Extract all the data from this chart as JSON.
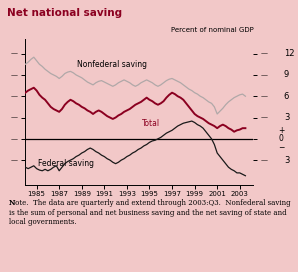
{
  "title": "Net national saving",
  "ylabel_right": "Percent of nominal GDP",
  "background_color": "#f2c8c8",
  "plot_bg_color": "#f2c8c8",
  "fig_bg_color": "#f2c8c8",
  "title_area_color": "#ffffff",
  "xlim": [
    1984.0,
    2004.2
  ],
  "ylim": [
    -6.5,
    14.0
  ],
  "yticks": [
    -3,
    0,
    3,
    6,
    9,
    12
  ],
  "xticks": [
    1985,
    1987,
    1989,
    1991,
    1993,
    1995,
    1997,
    1999,
    2001,
    2003
  ],
  "nonfederal_color": "#b0a8a8",
  "total_color": "#8b0020",
  "federal_color": "#1a1a1a",
  "note_text_normal": "The data are quarterly and extend through 2003:Q3.  Nonfederal saving is the sum of personal and net business saving and the net saving of state and local governments.",
  "nonfederal_label": "Nonfederal saving",
  "total_label": "Total",
  "federal_label": "Federal saving",
  "nonfederal_data": [
    [
      1984.0,
      10.5
    ],
    [
      1984.25,
      10.8
    ],
    [
      1984.5,
      11.2
    ],
    [
      1984.75,
      11.5
    ],
    [
      1985.0,
      11.0
    ],
    [
      1985.25,
      10.5
    ],
    [
      1985.5,
      10.2
    ],
    [
      1985.75,
      9.8
    ],
    [
      1986.0,
      9.5
    ],
    [
      1986.25,
      9.2
    ],
    [
      1986.5,
      9.0
    ],
    [
      1986.75,
      8.8
    ],
    [
      1987.0,
      8.5
    ],
    [
      1987.25,
      8.8
    ],
    [
      1987.5,
      9.2
    ],
    [
      1987.75,
      9.4
    ],
    [
      1988.0,
      9.5
    ],
    [
      1988.25,
      9.3
    ],
    [
      1988.5,
      9.0
    ],
    [
      1988.75,
      8.8
    ],
    [
      1989.0,
      8.6
    ],
    [
      1989.25,
      8.3
    ],
    [
      1989.5,
      8.0
    ],
    [
      1989.75,
      7.8
    ],
    [
      1990.0,
      7.6
    ],
    [
      1990.25,
      7.9
    ],
    [
      1990.5,
      8.1
    ],
    [
      1990.75,
      8.2
    ],
    [
      1991.0,
      8.0
    ],
    [
      1991.25,
      7.8
    ],
    [
      1991.5,
      7.6
    ],
    [
      1991.75,
      7.4
    ],
    [
      1992.0,
      7.6
    ],
    [
      1992.25,
      7.9
    ],
    [
      1992.5,
      8.1
    ],
    [
      1992.75,
      8.3
    ],
    [
      1993.0,
      8.1
    ],
    [
      1993.25,
      7.9
    ],
    [
      1993.5,
      7.6
    ],
    [
      1993.75,
      7.4
    ],
    [
      1994.0,
      7.6
    ],
    [
      1994.25,
      7.9
    ],
    [
      1994.5,
      8.1
    ],
    [
      1994.75,
      8.3
    ],
    [
      1995.0,
      8.1
    ],
    [
      1995.25,
      7.9
    ],
    [
      1995.5,
      7.6
    ],
    [
      1995.75,
      7.4
    ],
    [
      1996.0,
      7.6
    ],
    [
      1996.25,
      7.9
    ],
    [
      1996.5,
      8.2
    ],
    [
      1996.75,
      8.4
    ],
    [
      1997.0,
      8.5
    ],
    [
      1997.25,
      8.3
    ],
    [
      1997.5,
      8.1
    ],
    [
      1997.75,
      7.9
    ],
    [
      1998.0,
      7.6
    ],
    [
      1998.25,
      7.3
    ],
    [
      1998.5,
      7.0
    ],
    [
      1998.75,
      6.8
    ],
    [
      1999.0,
      6.5
    ],
    [
      1999.25,
      6.3
    ],
    [
      1999.5,
      6.0
    ],
    [
      1999.75,
      5.8
    ],
    [
      2000.0,
      5.5
    ],
    [
      2000.25,
      5.2
    ],
    [
      2000.5,
      5.0
    ],
    [
      2000.75,
      4.5
    ],
    [
      2001.0,
      3.5
    ],
    [
      2001.25,
      3.9
    ],
    [
      2001.5,
      4.3
    ],
    [
      2001.75,
      4.8
    ],
    [
      2002.0,
      5.2
    ],
    [
      2002.25,
      5.5
    ],
    [
      2002.5,
      5.8
    ],
    [
      2002.75,
      6.0
    ],
    [
      2003.0,
      6.2
    ],
    [
      2003.25,
      6.3
    ],
    [
      2003.5,
      6.0
    ]
  ],
  "total_data": [
    [
      1984.0,
      6.5
    ],
    [
      1984.25,
      6.8
    ],
    [
      1984.5,
      7.0
    ],
    [
      1984.75,
      7.2
    ],
    [
      1985.0,
      6.8
    ],
    [
      1985.25,
      6.2
    ],
    [
      1985.5,
      5.8
    ],
    [
      1985.75,
      5.5
    ],
    [
      1986.0,
      5.0
    ],
    [
      1986.25,
      4.5
    ],
    [
      1986.5,
      4.2
    ],
    [
      1986.75,
      4.0
    ],
    [
      1987.0,
      3.8
    ],
    [
      1987.25,
      4.2
    ],
    [
      1987.5,
      4.8
    ],
    [
      1987.75,
      5.2
    ],
    [
      1988.0,
      5.5
    ],
    [
      1988.25,
      5.3
    ],
    [
      1988.5,
      5.0
    ],
    [
      1988.75,
      4.8
    ],
    [
      1989.0,
      4.5
    ],
    [
      1989.25,
      4.3
    ],
    [
      1989.5,
      4.0
    ],
    [
      1989.75,
      3.8
    ],
    [
      1990.0,
      3.5
    ],
    [
      1990.25,
      3.8
    ],
    [
      1990.5,
      4.0
    ],
    [
      1990.75,
      3.8
    ],
    [
      1991.0,
      3.5
    ],
    [
      1991.25,
      3.2
    ],
    [
      1991.5,
      3.0
    ],
    [
      1991.75,
      2.8
    ],
    [
      1992.0,
      3.0
    ],
    [
      1992.25,
      3.3
    ],
    [
      1992.5,
      3.5
    ],
    [
      1992.75,
      3.8
    ],
    [
      1993.0,
      4.0
    ],
    [
      1993.25,
      4.2
    ],
    [
      1993.5,
      4.5
    ],
    [
      1993.75,
      4.8
    ],
    [
      1994.0,
      5.0
    ],
    [
      1994.25,
      5.2
    ],
    [
      1994.5,
      5.5
    ],
    [
      1994.75,
      5.8
    ],
    [
      1995.0,
      5.5
    ],
    [
      1995.25,
      5.3
    ],
    [
      1995.5,
      5.0
    ],
    [
      1995.75,
      4.8
    ],
    [
      1996.0,
      5.0
    ],
    [
      1996.25,
      5.3
    ],
    [
      1996.5,
      5.8
    ],
    [
      1996.75,
      6.2
    ],
    [
      1997.0,
      6.5
    ],
    [
      1997.25,
      6.3
    ],
    [
      1997.5,
      6.0
    ],
    [
      1997.75,
      5.8
    ],
    [
      1998.0,
      5.5
    ],
    [
      1998.25,
      5.0
    ],
    [
      1998.5,
      4.5
    ],
    [
      1998.75,
      4.0
    ],
    [
      1999.0,
      3.5
    ],
    [
      1999.25,
      3.2
    ],
    [
      1999.5,
      3.0
    ],
    [
      1999.75,
      2.8
    ],
    [
      2000.0,
      2.5
    ],
    [
      2000.25,
      2.2
    ],
    [
      2000.5,
      2.0
    ],
    [
      2000.75,
      1.8
    ],
    [
      2001.0,
      1.5
    ],
    [
      2001.25,
      1.8
    ],
    [
      2001.5,
      2.0
    ],
    [
      2001.75,
      1.8
    ],
    [
      2002.0,
      1.5
    ],
    [
      2002.25,
      1.3
    ],
    [
      2002.5,
      1.0
    ],
    [
      2002.75,
      1.2
    ],
    [
      2003.0,
      1.3
    ],
    [
      2003.25,
      1.5
    ],
    [
      2003.5,
      1.5
    ]
  ],
  "federal_data": [
    [
      1984.0,
      -4.0
    ],
    [
      1984.25,
      -4.2
    ],
    [
      1984.5,
      -4.0
    ],
    [
      1984.75,
      -3.8
    ],
    [
      1985.0,
      -4.2
    ],
    [
      1985.25,
      -4.4
    ],
    [
      1985.5,
      -4.5
    ],
    [
      1985.75,
      -4.3
    ],
    [
      1986.0,
      -4.5
    ],
    [
      1986.25,
      -4.3
    ],
    [
      1986.5,
      -4.0
    ],
    [
      1986.75,
      -3.8
    ],
    [
      1987.0,
      -4.5
    ],
    [
      1987.25,
      -4.0
    ],
    [
      1987.5,
      -3.5
    ],
    [
      1987.75,
      -3.2
    ],
    [
      1988.0,
      -3.0
    ],
    [
      1988.25,
      -2.8
    ],
    [
      1988.5,
      -2.5
    ],
    [
      1988.75,
      -2.3
    ],
    [
      1989.0,
      -2.0
    ],
    [
      1989.25,
      -1.8
    ],
    [
      1989.5,
      -1.5
    ],
    [
      1989.75,
      -1.3
    ],
    [
      1990.0,
      -1.5
    ],
    [
      1990.25,
      -1.8
    ],
    [
      1990.5,
      -2.0
    ],
    [
      1990.75,
      -2.3
    ],
    [
      1991.0,
      -2.5
    ],
    [
      1991.25,
      -2.8
    ],
    [
      1991.5,
      -3.0
    ],
    [
      1991.75,
      -3.3
    ],
    [
      1992.0,
      -3.5
    ],
    [
      1992.25,
      -3.3
    ],
    [
      1992.5,
      -3.0
    ],
    [
      1992.75,
      -2.8
    ],
    [
      1993.0,
      -2.5
    ],
    [
      1993.25,
      -2.3
    ],
    [
      1993.5,
      -2.0
    ],
    [
      1993.75,
      -1.8
    ],
    [
      1994.0,
      -1.5
    ],
    [
      1994.25,
      -1.3
    ],
    [
      1994.5,
      -1.0
    ],
    [
      1994.75,
      -0.8
    ],
    [
      1995.0,
      -0.5
    ],
    [
      1995.25,
      -0.3
    ],
    [
      1995.5,
      -0.2
    ],
    [
      1995.75,
      0.0
    ],
    [
      1996.0,
      0.2
    ],
    [
      1996.25,
      0.5
    ],
    [
      1996.5,
      0.8
    ],
    [
      1996.75,
      1.0
    ],
    [
      1997.0,
      1.2
    ],
    [
      1997.25,
      1.5
    ],
    [
      1997.5,
      1.8
    ],
    [
      1997.75,
      2.0
    ],
    [
      1998.0,
      2.2
    ],
    [
      1998.25,
      2.3
    ],
    [
      1998.5,
      2.4
    ],
    [
      1998.75,
      2.5
    ],
    [
      1999.0,
      2.3
    ],
    [
      1999.25,
      2.0
    ],
    [
      1999.5,
      1.8
    ],
    [
      1999.75,
      1.5
    ],
    [
      2000.0,
      1.0
    ],
    [
      2000.25,
      0.5
    ],
    [
      2000.5,
      0.0
    ],
    [
      2000.75,
      -0.8
    ],
    [
      2001.0,
      -2.0
    ],
    [
      2001.25,
      -2.5
    ],
    [
      2001.5,
      -3.0
    ],
    [
      2001.75,
      -3.5
    ],
    [
      2002.0,
      -4.0
    ],
    [
      2002.25,
      -4.3
    ],
    [
      2002.5,
      -4.5
    ],
    [
      2002.75,
      -4.8
    ],
    [
      2003.0,
      -4.8
    ],
    [
      2003.25,
      -5.0
    ],
    [
      2003.5,
      -5.2
    ]
  ]
}
